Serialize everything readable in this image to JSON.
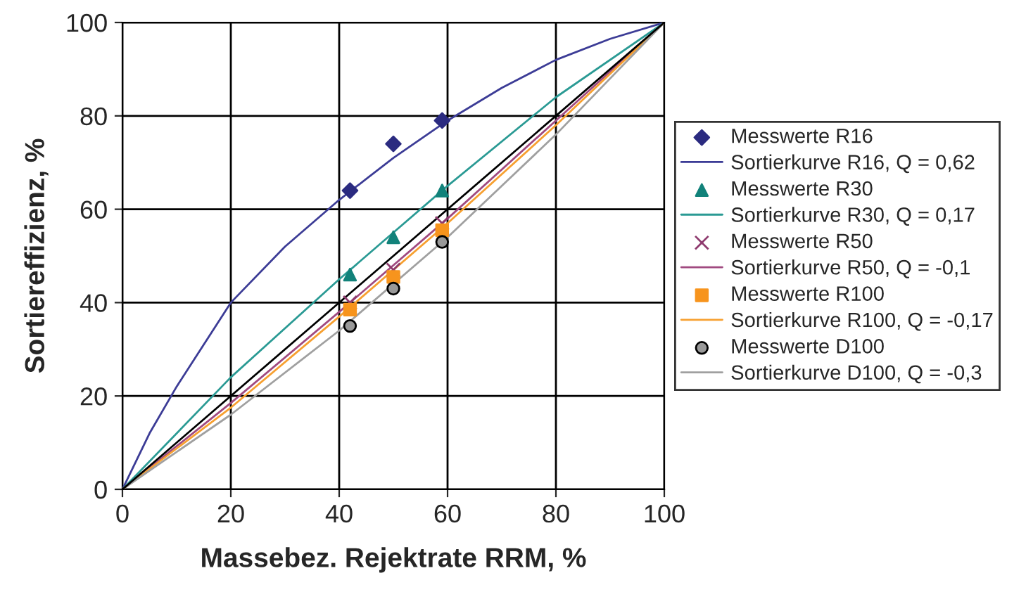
{
  "chart_data": {
    "type": "scatter",
    "xlabel": "Massebez. Rejektrate RRM, %",
    "ylabel": "Sortiereffizienz, %",
    "xlim": [
      0,
      100
    ],
    "ylim": [
      0,
      100
    ],
    "xticks": [
      0,
      20,
      40,
      60,
      80,
      100
    ],
    "yticks": [
      0,
      20,
      40,
      60,
      80,
      100
    ],
    "grid": true,
    "legend": "right",
    "series": [
      {
        "name": "Messwerte R16",
        "marker": "diamond",
        "color": "#2b2b80",
        "x": [
          42,
          50,
          59
        ],
        "values": [
          64,
          74,
          79
        ]
      },
      {
        "name": "Sortierkurve R16, Q = 0,62",
        "type": "line",
        "marker": "none",
        "color": "#3c3c96",
        "x": [
          0,
          5,
          10,
          20,
          30,
          40,
          50,
          60,
          70,
          80,
          90,
          100
        ],
        "values": [
          0,
          12,
          22,
          40,
          52,
          62,
          71,
          79,
          86,
          92,
          96.5,
          100
        ]
      },
      {
        "name": "Messwerte R30",
        "marker": "triangle",
        "color": "#12827a",
        "x": [
          42,
          50,
          59
        ],
        "values": [
          46,
          54,
          64
        ]
      },
      {
        "name": "Sortierkurve R30, Q = 0,17",
        "type": "line",
        "marker": "none",
        "color": "#2a9a94",
        "x": [
          0,
          20,
          40,
          50,
          60,
          80,
          100
        ],
        "values": [
          0,
          24,
          45,
          55,
          65,
          84,
          100
        ]
      },
      {
        "name": "Messwerte R50",
        "marker": "cross",
        "color": "#8e3a6e",
        "x": [
          42,
          50,
          59
        ],
        "values": [
          40,
          47,
          57
        ]
      },
      {
        "name": "Sortierkurve R50, Q = -0,1",
        "type": "line",
        "marker": "none",
        "color": "#a04a80",
        "x": [
          0,
          20,
          40,
          60,
          80,
          100
        ],
        "values": [
          0,
          18.5,
          38,
          58,
          79,
          100
        ]
      },
      {
        "name": "Messwerte R100",
        "marker": "square",
        "color": "#f7941d",
        "x": [
          42,
          50,
          59
        ],
        "values": [
          38.5,
          45.5,
          55.5
        ]
      },
      {
        "name": "Sortierkurve R100, Q = -0,17",
        "type": "line",
        "marker": "none",
        "color": "#f7a030",
        "x": [
          0,
          20,
          40,
          60,
          80,
          100
        ],
        "values": [
          0,
          17.5,
          37,
          57,
          78,
          100
        ]
      },
      {
        "name": "Messwerte D100",
        "marker": "circle",
        "color": "#999999",
        "x": [
          42,
          50,
          59
        ],
        "values": [
          35,
          43,
          53
        ]
      },
      {
        "name": "Sortierkurve D100, Q = -0,3",
        "type": "line",
        "marker": "none",
        "color": "#a0a0a0",
        "x": [
          0,
          20,
          40,
          60,
          80,
          100
        ],
        "values": [
          0,
          16,
          34,
          54,
          76,
          100
        ]
      },
      {
        "type": "line",
        "marker": "none",
        "color": "#000000",
        "x": [
          0,
          100
        ],
        "values": [
          0,
          100
        ]
      }
    ]
  }
}
